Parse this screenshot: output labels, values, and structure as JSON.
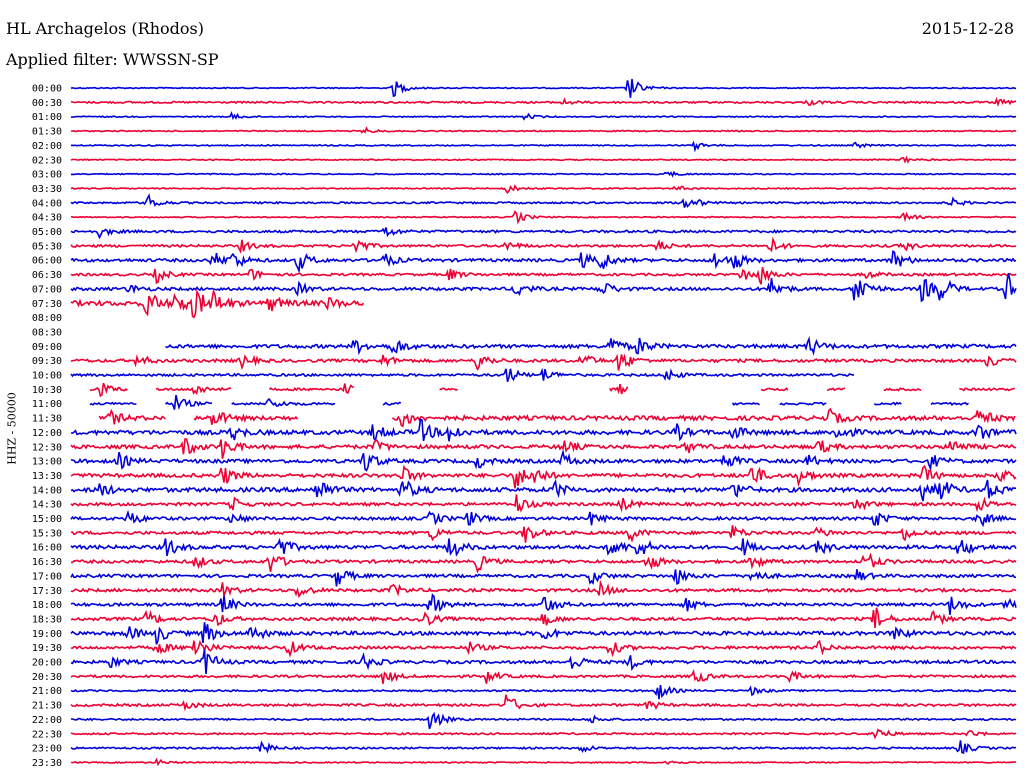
{
  "header": {
    "station": "HL Archagelos (Rhodos)",
    "date": "2015-12-28",
    "filter": "Applied filter: WWSSN-SP"
  },
  "axis": {
    "ylabel": "HHZ - 50000"
  },
  "colors": {
    "even_trace": "#0000dd",
    "odd_trace": "#ee0033",
    "text": "#000000",
    "background": "#ffffff"
  },
  "chart_data": {
    "type": "line",
    "title": "HL Archagelos (Rhodos)",
    "subtitle": "Applied filter: WWSSN-SP",
    "ylabel": "HHZ - 50000",
    "xlabel": "",
    "rows": [
      {
        "label": "00:00",
        "activity": 1,
        "events": [
          [
            0.34,
            10
          ],
          [
            0.59,
            14
          ]
        ]
      },
      {
        "label": "00:30",
        "activity": 2,
        "events": [
          [
            0.52,
            3
          ],
          [
            0.78,
            3
          ],
          [
            0.98,
            3
          ]
        ]
      },
      {
        "label": "01:00",
        "activity": 1,
        "events": [
          [
            0.17,
            3
          ],
          [
            0.48,
            3
          ]
        ]
      },
      {
        "label": "01:30",
        "activity": 1,
        "events": [
          [
            0.31,
            3
          ]
        ]
      },
      {
        "label": "02:00",
        "activity": 1,
        "events": [
          [
            0.66,
            4
          ],
          [
            0.83,
            3
          ]
        ]
      },
      {
        "label": "02:30",
        "activity": 1,
        "events": [
          [
            0.88,
            3
          ]
        ]
      },
      {
        "label": "03:00",
        "activity": 1,
        "events": [
          [
            0.63,
            3
          ]
        ]
      },
      {
        "label": "03:30",
        "activity": 1,
        "events": [
          [
            0.46,
            6
          ],
          [
            0.64,
            3
          ]
        ]
      },
      {
        "label": "04:00",
        "activity": 2,
        "events": [
          [
            0.08,
            9
          ],
          [
            0.65,
            11
          ],
          [
            0.93,
            5
          ]
        ]
      },
      {
        "label": "04:30",
        "activity": 1,
        "events": [
          [
            0.47,
            7
          ],
          [
            0.88,
            6
          ]
        ]
      },
      {
        "label": "05:00",
        "activity": 3,
        "events": [
          [
            0.03,
            5
          ],
          [
            0.33,
            7
          ]
        ]
      },
      {
        "label": "05:30",
        "activity": 3,
        "events": [
          [
            0.18,
            6
          ],
          [
            0.3,
            9
          ],
          [
            0.46,
            5
          ],
          [
            0.62,
            6
          ],
          [
            0.74,
            8
          ],
          [
            0.88,
            5
          ]
        ]
      },
      {
        "label": "06:00",
        "activity": 4,
        "events": [
          [
            0.15,
            9
          ],
          [
            0.17,
            10
          ],
          [
            0.24,
            11
          ],
          [
            0.33,
            8
          ],
          [
            0.54,
            8
          ],
          [
            0.56,
            11
          ],
          [
            0.68,
            9
          ],
          [
            0.7,
            10
          ],
          [
            0.87,
            11
          ]
        ]
      },
      {
        "label": "06:30",
        "activity": 3,
        "events": [
          [
            0.09,
            8
          ],
          [
            0.19,
            6
          ],
          [
            0.4,
            6
          ],
          [
            0.71,
            8
          ],
          [
            0.73,
            9
          ],
          [
            0.84,
            5
          ]
        ]
      },
      {
        "label": "07:00",
        "activity": 4,
        "events": [
          [
            0.06,
            5
          ],
          [
            0.24,
            6
          ],
          [
            0.47,
            9
          ],
          [
            0.56,
            10
          ],
          [
            0.74,
            12
          ],
          [
            0.83,
            22
          ],
          [
            0.9,
            13
          ],
          [
            0.92,
            14
          ],
          [
            0.99,
            18
          ]
        ]
      },
      {
        "label": "07:30",
        "activity": 7,
        "start": 0,
        "end": 0.31,
        "events": [
          [
            0.08,
            14
          ],
          [
            0.11,
            12
          ],
          [
            0.13,
            16
          ],
          [
            0.15,
            10
          ],
          [
            0.21,
            8
          ],
          [
            0.27,
            6
          ]
        ]
      },
      {
        "label": "08:00",
        "activity": 0,
        "start": 0,
        "end": 0,
        "events": []
      },
      {
        "label": "08:30",
        "activity": 0,
        "start": 0,
        "end": 0,
        "events": []
      },
      {
        "label": "09:00",
        "activity": 5,
        "start": 0.1,
        "end": 1,
        "events": [
          [
            0.3,
            8
          ],
          [
            0.34,
            10
          ],
          [
            0.57,
            11
          ],
          [
            0.6,
            9
          ],
          [
            0.78,
            10
          ]
        ]
      },
      {
        "label": "09:30",
        "activity": 4,
        "events": [
          [
            0.07,
            6
          ],
          [
            0.18,
            7
          ],
          [
            0.33,
            6
          ],
          [
            0.43,
            9
          ],
          [
            0.54,
            8
          ],
          [
            0.58,
            12
          ],
          [
            0.97,
            6
          ]
        ]
      },
      {
        "label": "10:00",
        "activity": 3,
        "start": 0,
        "end": 0.83,
        "events": [
          [
            0.46,
            10
          ],
          [
            0.5,
            7
          ],
          [
            0.63,
            7
          ]
        ]
      },
      {
        "label": "10:30",
        "activity": 3,
        "segments": [
          [
            0.02,
            0.06
          ],
          [
            0.09,
            0.17
          ],
          [
            0.21,
            0.25
          ],
          [
            0.25,
            0.3
          ],
          [
            0.39,
            0.41
          ],
          [
            0.57,
            0.59
          ],
          [
            0.73,
            0.76
          ],
          [
            0.8,
            0.82
          ],
          [
            0.86,
            0.9
          ],
          [
            0.94,
            1
          ]
        ],
        "events": [
          [
            0.03,
            8
          ],
          [
            0.13,
            6
          ],
          [
            0.29,
            6
          ],
          [
            0.58,
            5
          ]
        ]
      },
      {
        "label": "11:00",
        "activity": 3,
        "segments": [
          [
            0.02,
            0.07
          ],
          [
            0.1,
            0.15
          ],
          [
            0.17,
            0.28
          ],
          [
            0.33,
            0.35
          ],
          [
            0.7,
            0.73
          ],
          [
            0.75,
            0.8
          ],
          [
            0.85,
            0.88
          ],
          [
            0.91,
            0.95
          ]
        ],
        "events": [
          [
            0.11,
            9
          ],
          [
            0.21,
            6
          ],
          [
            0.82,
            5
          ]
        ]
      },
      {
        "label": "11:30",
        "activity": 6,
        "segments": [
          [
            0.03,
            0.1
          ],
          [
            0.13,
            0.24
          ],
          [
            0.34,
            1
          ]
        ],
        "events": [
          [
            0.04,
            8
          ],
          [
            0.15,
            10
          ],
          [
            0.35,
            9
          ],
          [
            0.8,
            10
          ],
          [
            0.96,
            11
          ]
        ]
      },
      {
        "label": "12:00",
        "activity": 6,
        "events": [
          [
            0.17,
            8
          ],
          [
            0.32,
            9
          ],
          [
            0.37,
            12
          ],
          [
            0.4,
            10
          ],
          [
            0.64,
            8
          ],
          [
            0.7,
            7
          ],
          [
            0.81,
            9
          ],
          [
            0.96,
            10
          ]
        ]
      },
      {
        "label": "12:30",
        "activity": 5,
        "events": [
          [
            0.12,
            10
          ],
          [
            0.16,
            12
          ],
          [
            0.32,
            7
          ],
          [
            0.52,
            8
          ],
          [
            0.65,
            7
          ],
          [
            0.79,
            8
          ],
          [
            0.93,
            9
          ]
        ]
      },
      {
        "label": "13:00",
        "activity": 5,
        "events": [
          [
            0.05,
            8
          ],
          [
            0.31,
            13
          ],
          [
            0.43,
            7
          ],
          [
            0.52,
            8
          ],
          [
            0.69,
            10
          ],
          [
            0.78,
            6
          ],
          [
            0.91,
            7
          ]
        ]
      },
      {
        "label": "13:30",
        "activity": 5,
        "events": [
          [
            0.16,
            11
          ],
          [
            0.35,
            10
          ],
          [
            0.47,
            14
          ],
          [
            0.49,
            9
          ],
          [
            0.72,
            12
          ],
          [
            0.77,
            8
          ],
          [
            0.9,
            11
          ],
          [
            0.98,
            8
          ]
        ]
      },
      {
        "label": "14:00",
        "activity": 6,
        "events": [
          [
            0.03,
            7
          ],
          [
            0.26,
            14
          ],
          [
            0.35,
            13
          ],
          [
            0.51,
            9
          ],
          [
            0.7,
            10
          ],
          [
            0.9,
            12
          ],
          [
            0.92,
            10
          ],
          [
            0.97,
            9
          ]
        ]
      },
      {
        "label": "14:30",
        "activity": 4,
        "events": [
          [
            0.17,
            7
          ],
          [
            0.47,
            12
          ],
          [
            0.58,
            8
          ],
          [
            0.83,
            7
          ],
          [
            0.96,
            8
          ]
        ]
      },
      {
        "label": "15:00",
        "activity": 4,
        "events": [
          [
            0.06,
            8
          ],
          [
            0.17,
            6
          ],
          [
            0.38,
            7
          ],
          [
            0.42,
            8
          ],
          [
            0.55,
            7
          ],
          [
            0.85,
            9
          ],
          [
            0.96,
            9
          ]
        ]
      },
      {
        "label": "15:30",
        "activity": 4,
        "events": [
          [
            0.38,
            8
          ],
          [
            0.48,
            12
          ],
          [
            0.59,
            9
          ],
          [
            0.7,
            7
          ],
          [
            0.79,
            6
          ],
          [
            0.88,
            8
          ]
        ]
      },
      {
        "label": "16:00",
        "activity": 5,
        "events": [
          [
            0.1,
            10
          ],
          [
            0.22,
            11
          ],
          [
            0.4,
            13
          ],
          [
            0.57,
            12
          ],
          [
            0.6,
            11
          ],
          [
            0.71,
            9
          ],
          [
            0.79,
            8
          ],
          [
            0.94,
            12
          ]
        ]
      },
      {
        "label": "16:30",
        "activity": 4,
        "events": [
          [
            0.13,
            8
          ],
          [
            0.21,
            12
          ],
          [
            0.43,
            9
          ],
          [
            0.61,
            10
          ],
          [
            0.72,
            8
          ],
          [
            0.84,
            11
          ]
        ]
      },
      {
        "label": "17:00",
        "activity": 4,
        "events": [
          [
            0.28,
            12
          ],
          [
            0.55,
            8
          ],
          [
            0.64,
            9
          ],
          [
            0.72,
            8
          ],
          [
            0.83,
            7
          ]
        ]
      },
      {
        "label": "17:30",
        "activity": 4,
        "events": [
          [
            0.16,
            7
          ],
          [
            0.24,
            8
          ],
          [
            0.34,
            6
          ],
          [
            0.56,
            7
          ]
        ]
      },
      {
        "label": "18:00",
        "activity": 4,
        "events": [
          [
            0.16,
            10
          ],
          [
            0.38,
            12
          ],
          [
            0.5,
            11
          ],
          [
            0.65,
            7
          ],
          [
            0.93,
            10
          ],
          [
            0.99,
            7
          ]
        ]
      },
      {
        "label": "18:30",
        "activity": 4,
        "events": [
          [
            0.08,
            8
          ],
          [
            0.15,
            10
          ],
          [
            0.37,
            11
          ],
          [
            0.5,
            7
          ],
          [
            0.85,
            13
          ],
          [
            0.91,
            8
          ]
        ]
      },
      {
        "label": "19:00",
        "activity": 5,
        "events": [
          [
            0.06,
            8
          ],
          [
            0.09,
            10
          ],
          [
            0.14,
            13
          ],
          [
            0.19,
            10
          ],
          [
            0.5,
            7
          ],
          [
            0.87,
            9
          ]
        ]
      },
      {
        "label": "19:30",
        "activity": 4,
        "events": [
          [
            0.09,
            8
          ],
          [
            0.13,
            14
          ],
          [
            0.23,
            8
          ],
          [
            0.42,
            6
          ],
          [
            0.57,
            8
          ],
          [
            0.79,
            7
          ]
        ]
      },
      {
        "label": "20:00",
        "activity": 4,
        "events": [
          [
            0.04,
            6
          ],
          [
            0.14,
            16
          ],
          [
            0.31,
            8
          ],
          [
            0.53,
            9
          ],
          [
            0.59,
            8
          ]
        ]
      },
      {
        "label": "20:30",
        "activity": 3,
        "events": [
          [
            0.33,
            8
          ],
          [
            0.44,
            7
          ],
          [
            0.66,
            9
          ],
          [
            0.76,
            6
          ]
        ]
      },
      {
        "label": "21:00",
        "activity": 2,
        "events": [
          [
            0.62,
            10
          ],
          [
            0.72,
            4
          ]
        ]
      },
      {
        "label": "21:30",
        "activity": 3,
        "events": [
          [
            0.12,
            5
          ],
          [
            0.46,
            12
          ],
          [
            0.61,
            5
          ]
        ]
      },
      {
        "label": "22:00",
        "activity": 2,
        "events": [
          [
            0.38,
            12
          ],
          [
            0.55,
            4
          ]
        ]
      },
      {
        "label": "22:30",
        "activity": 2,
        "events": [
          [
            0.85,
            9
          ],
          [
            0.95,
            4
          ]
        ]
      },
      {
        "label": "23:00",
        "activity": 2,
        "events": [
          [
            0.2,
            7
          ],
          [
            0.54,
            4
          ],
          [
            0.94,
            8
          ]
        ]
      },
      {
        "label": "23:30",
        "activity": 1,
        "events": [
          [
            0.09,
            3
          ],
          [
            0.63,
            3
          ]
        ]
      }
    ]
  }
}
